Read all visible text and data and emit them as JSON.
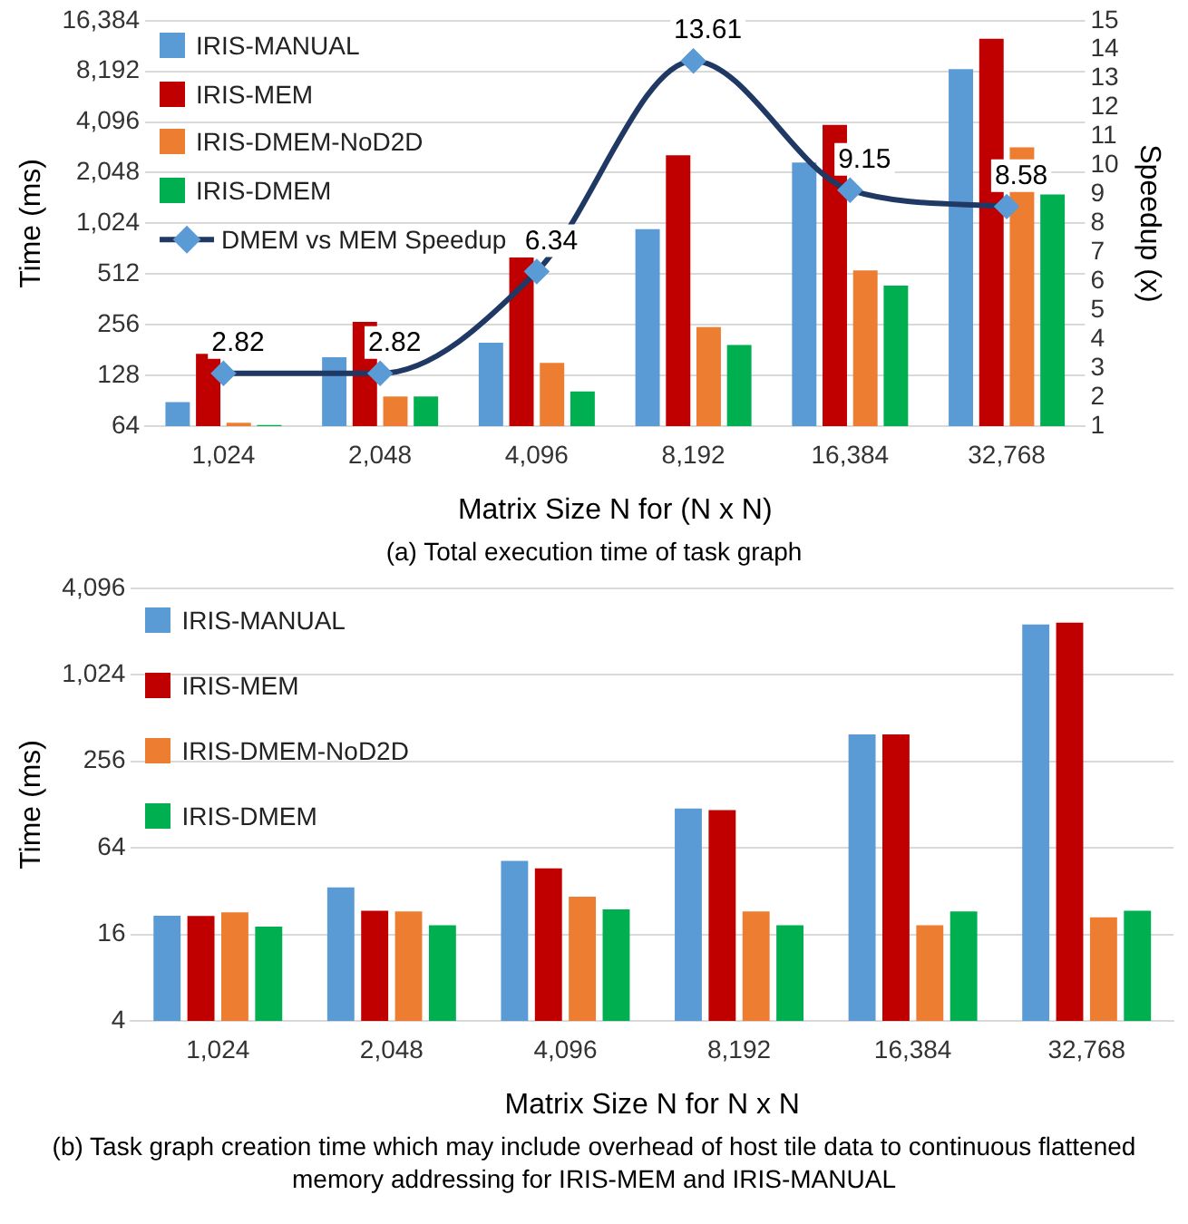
{
  "chart_data": [
    {
      "type": "bar",
      "xlabel": "Matrix Size N for (N x N)",
      "ylabel": "Time (ms)",
      "y2label": "Speedup (x)",
      "log": "y",
      "grid": "y",
      "legend": "top left",
      "annotations": [
        "(a)    Total execution time of task graph"
      ],
      "categories": [
        "1,024",
        "2,048",
        "4,096",
        "8,192",
        "16,384",
        "32,768"
      ],
      "ylim": [
        64,
        16384
      ],
      "yticks": [
        64,
        128,
        256,
        512,
        {
          "value": 1024,
          "label": "1,024"
        },
        {
          "value": 2048,
          "label": "2,048"
        },
        {
          "value": 4096,
          "label": "4,096"
        },
        {
          "value": 8192,
          "label": "8,192"
        },
        {
          "value": 16384,
          "label": "16,384"
        }
      ],
      "y2lim": [
        1,
        15
      ],
      "y2ticks": [
        1,
        2,
        3,
        4,
        5,
        6,
        7,
        8,
        9,
        10,
        11,
        12,
        13,
        14,
        15
      ],
      "series": [
        {
          "name": "IRIS-MANUAL",
          "color": "#5b9bd5",
          "values": [
            89,
            164,
            200,
            946,
            2353,
            8443
          ]
        },
        {
          "name": "IRIS-MEM",
          "color": "#c00000",
          "values": [
            172,
            266,
            643,
            2598,
            3937,
            12796
          ]
        },
        {
          "name": "IRIS-DMEM-NoD2D",
          "color": "#ed7d31",
          "values": [
            67,
            96,
            152,
            248,
            538,
            2900
          ]
        },
        {
          "name": "IRIS-DMEM",
          "color": "#00b050",
          "values": [
            65,
            96,
            103,
            194,
            437,
            1523
          ]
        },
        {
          "name": "DMEM vs MEM Speedup",
          "type": "line",
          "axis": "y2",
          "color": "#203864",
          "marker": "diamond",
          "line_style": "solid",
          "values": [
            2.82,
            2.82,
            6.34,
            13.61,
            9.15,
            8.58
          ],
          "value_labels": [
            "2.82",
            "2.82",
            "6.34",
            "13.61",
            "9.15",
            "8.58"
          ]
        }
      ]
    },
    {
      "type": "bar",
      "xlabel": "Matrix Size N for N x N",
      "ylabel": "Time (ms)",
      "log": "y",
      "grid": "y",
      "legend": "top left",
      "annotations": [
        "(b) Task graph creation time which may include overhead of host tile data to continuous flattened memory addressing for IRIS-MEM and IRIS-MANUAL"
      ],
      "categories": [
        "1,024",
        "2,048",
        "4,096",
        "8,192",
        "16,384",
        "32,768"
      ],
      "ylim": [
        4,
        4096
      ],
      "yticks": [
        4,
        16,
        64,
        256,
        {
          "value": 1024,
          "label": "1,024"
        },
        {
          "value": 4096,
          "label": "4,096"
        }
      ],
      "series": [
        {
          "name": "IRIS-MANUAL",
          "color": "#5b9bd5",
          "values": [
            21.6,
            34,
            52,
            120,
            394,
            2290
          ]
        },
        {
          "name": "IRIS-MEM",
          "color": "#c00000",
          "values": [
            21.5,
            23.4,
            46,
            117,
            394,
            2360
          ]
        },
        {
          "name": "IRIS-DMEM-NoD2D",
          "color": "#ed7d31",
          "values": [
            22.8,
            23.1,
            29.3,
            23.1,
            18.5,
            21
          ]
        },
        {
          "name": "IRIS-DMEM",
          "color": "#00b050",
          "values": [
            18.1,
            18.5,
            23.9,
            18.5,
            23.1,
            23.4
          ]
        }
      ]
    }
  ]
}
